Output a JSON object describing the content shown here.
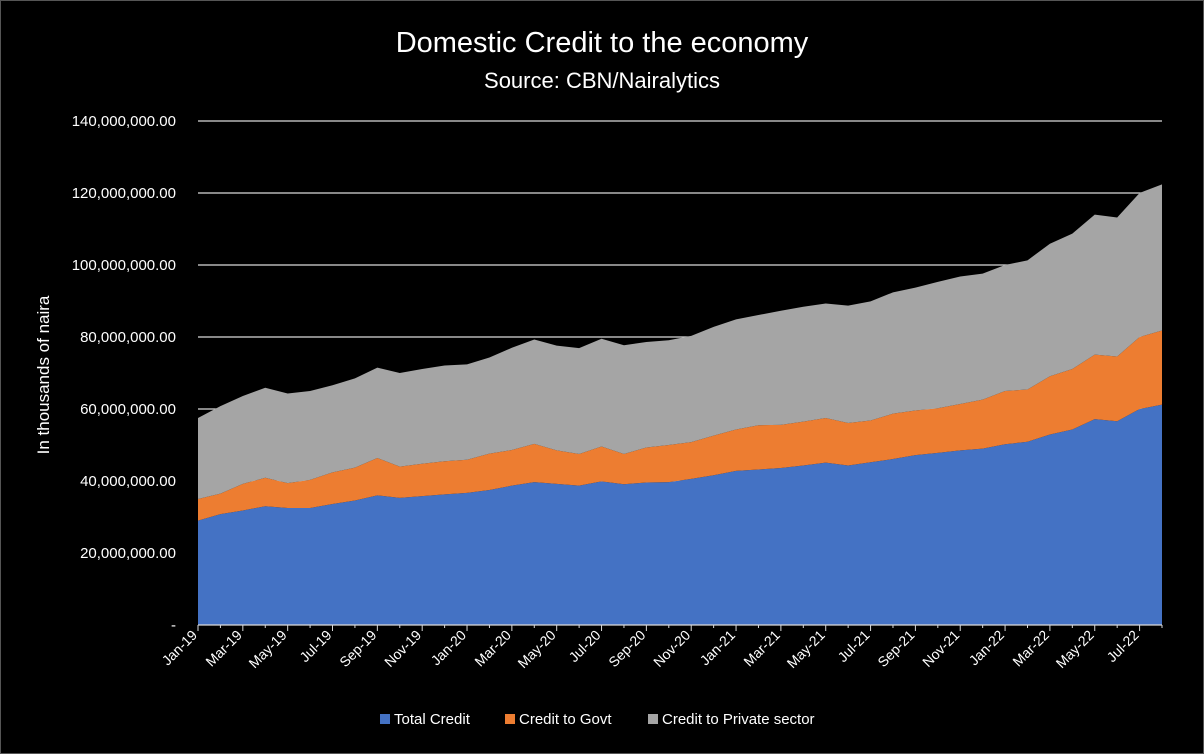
{
  "chart_data": {
    "type": "area",
    "stacked": true,
    "title": "Domestic Credit to the economy",
    "subtitle": "Source: CBN/Nairalytics",
    "ylabel": "In thousands of naira",
    "xlabel": "",
    "ylim": [
      0,
      140000000
    ],
    "yticks": [
      0,
      20000000,
      40000000,
      60000000,
      80000000,
      100000000,
      120000000,
      140000000
    ],
    "ytick_labels": [
      "-",
      "20,000,000.00",
      "40,000,000.00",
      "60,000,000.00",
      "80,000,000.00",
      "100,000,000.00",
      "120,000,000.00",
      "140,000,000.00"
    ],
    "grid": true,
    "legend_position": "bottom",
    "x": [
      "Jan-19",
      "Feb-19",
      "Mar-19",
      "Apr-19",
      "May-19",
      "Jun-19",
      "Jul-19",
      "Aug-19",
      "Sep-19",
      "Oct-19",
      "Nov-19",
      "Dec-19",
      "Jan-20",
      "Feb-20",
      "Mar-20",
      "Apr-20",
      "May-20",
      "Jun-20",
      "Jul-20",
      "Aug-20",
      "Sep-20",
      "Oct-20",
      "Nov-20",
      "Dec-20",
      "Jan-21",
      "Feb-21",
      "Mar-21",
      "Apr-21",
      "May-21",
      "Jun-21",
      "Jul-21",
      "Aug-21",
      "Sep-21",
      "Oct-21",
      "Nov-21",
      "Dec-21",
      "Jan-22",
      "Feb-22",
      "Mar-22",
      "Apr-22",
      "May-22",
      "Jun-22",
      "Jul-22",
      "Aug-22"
    ],
    "x_tick_labels": [
      "Jan-19",
      "Mar-19",
      "May-19",
      "Jul-19",
      "Sep-19",
      "Nov-19",
      "Jan-20",
      "Mar-20",
      "May-20",
      "Jul-20",
      "Sep-20",
      "Nov-20",
      "Jan-21",
      "Mar-21",
      "May-21",
      "Jul-21",
      "Sep-21",
      "Nov-21",
      "Jan-22",
      "Mar-22",
      "May-22",
      "Jul-22"
    ],
    "series": [
      {
        "name": "Total Credit",
        "color": "#4472C4",
        "values": [
          29000000,
          30800000,
          31800000,
          33000000,
          32500000,
          32500000,
          33600000,
          34600000,
          36000000,
          35300000,
          35800000,
          36300000,
          36700000,
          37500000,
          38700000,
          39700000,
          39200000,
          38700000,
          39900000,
          39100000,
          39600000,
          39700000,
          40600000,
          41600000,
          42800000,
          43200000,
          43600000,
          44300000,
          45100000,
          44300000,
          45200000,
          46100000,
          47200000,
          47800000,
          48500000,
          49000000,
          50200000,
          50900000,
          52900000,
          54300000,
          57200000,
          56600000,
          60000000,
          61200000
        ]
      },
      {
        "name": "Credit to Govt",
        "color": "#ED7D31",
        "values": [
          6000000,
          5700000,
          7400000,
          7900000,
          6900000,
          7800000,
          8800000,
          9100000,
          10400000,
          8700000,
          9000000,
          9200000,
          9200000,
          10100000,
          9900000,
          10600000,
          9300000,
          8800000,
          9700000,
          8400000,
          9700000,
          10300000,
          10200000,
          11000000,
          11500000,
          12300000,
          12000000,
          12200000,
          12400000,
          11800000,
          11600000,
          12600000,
          12400000,
          12400000,
          12900000,
          13600000,
          14800000,
          14500000,
          16200000,
          16800000,
          17900000,
          18000000,
          20000000,
          20600000
        ]
      },
      {
        "name": "Credit to Private sector",
        "color": "#A5A5A5",
        "values": [
          22500000,
          24300000,
          24400000,
          25000000,
          24900000,
          24700000,
          24200000,
          24800000,
          25100000,
          26000000,
          26300000,
          26600000,
          26500000,
          26700000,
          28400000,
          29000000,
          29100000,
          29400000,
          29900000,
          30200000,
          29300000,
          29100000,
          29500000,
          30200000,
          30600000,
          30600000,
          31700000,
          31900000,
          31800000,
          32600000,
          33100000,
          33700000,
          34100000,
          35100000,
          35400000,
          35000000,
          35000000,
          35900000,
          36800000,
          37600000,
          38900000,
          38600000,
          40000000,
          40600000
        ]
      }
    ]
  }
}
